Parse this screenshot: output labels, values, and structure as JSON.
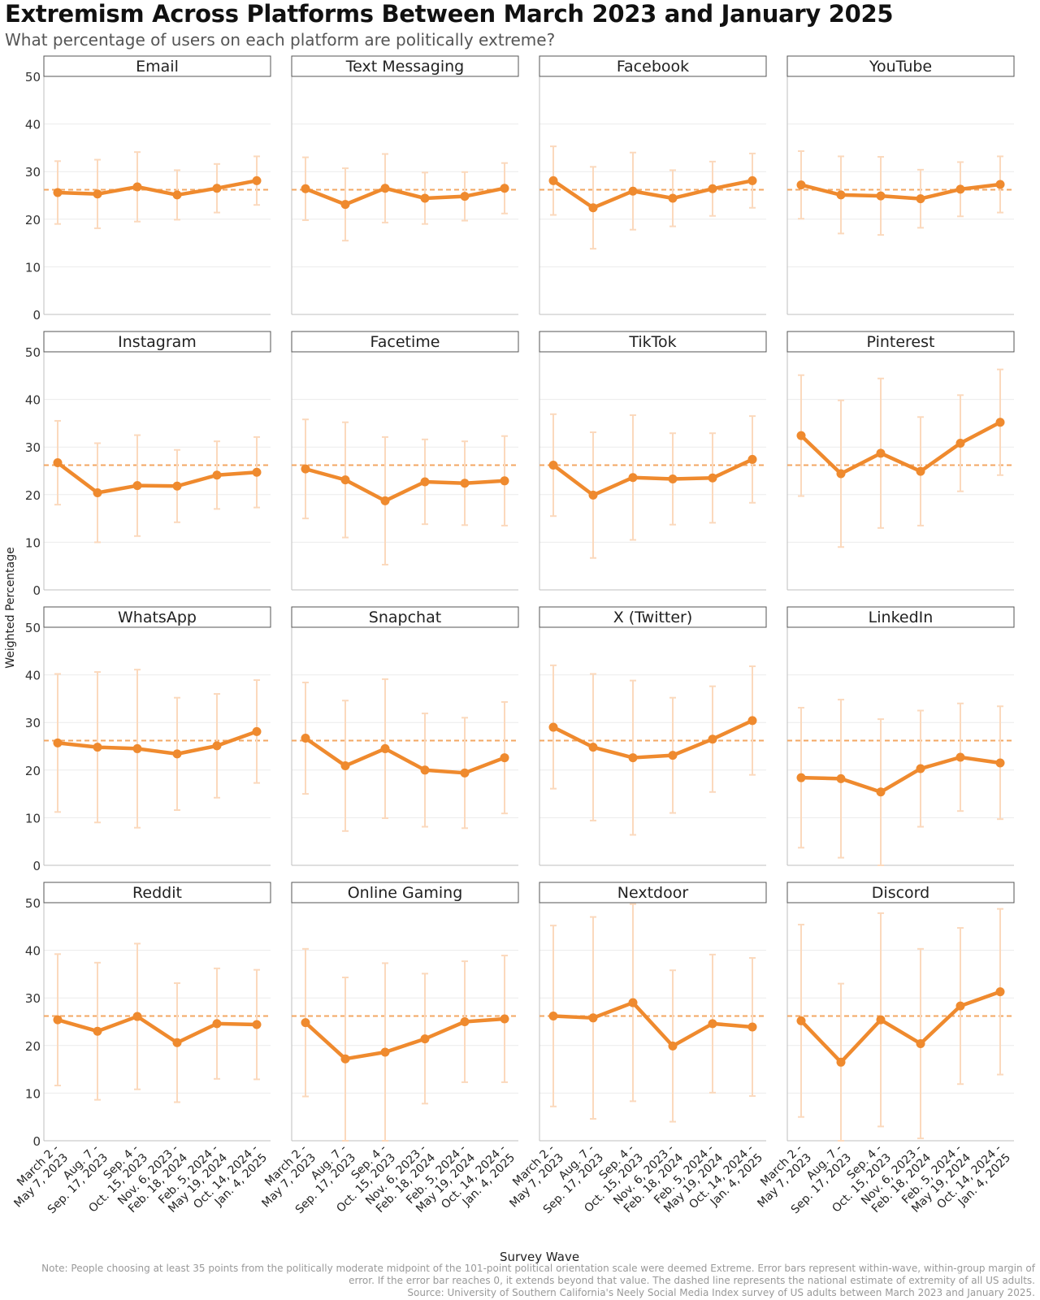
{
  "title": "Extremism Across Platforms Between March 2023 and January 2025",
  "subtitle": "What percentage of users on each platform are politically extreme?",
  "note": {
    "line1": "Note: People choosing at least 35 points from the politically moderate midpoint of the 101-point political orientation scale were deemed Extreme. Error bars represent within-wave, within-group margin of",
    "line2": "error. If the error bar reaches 0, it extends beyond that value. The dashed line represents the national estimate of extremity of all US adults.",
    "line3": "Source: University of Southern California's Neely Social Media Index survey of US adults between March 2023 and January 2025."
  },
  "colors": {
    "line": "#ef8a2e",
    "error_bar": "#fbd9bd",
    "reference_line": "#f3a763",
    "grid": "#ececec",
    "axis_text": "#333333"
  },
  "chart_data": {
    "type": "line",
    "layout": "small-multiples 4x4",
    "xlabel": "Survey Wave",
    "ylabel": "Weighted Percentage",
    "ylim": [
      0,
      50
    ],
    "yticks": [
      0,
      10,
      20,
      30,
      40,
      50
    ],
    "grid": true,
    "reference_value": 26.2,
    "categories": [
      [
        "March 2 -",
        "May 7, 2023"
      ],
      [
        "Aug. 7 -",
        "Sep. 17, 2023"
      ],
      [
        "Sep. 4 -",
        "Oct. 15, 2023"
      ],
      [
        "Nov. 6, 2023 -",
        "Feb. 18, 2024"
      ],
      [
        "Feb. 5, 2024 -",
        "May 19, 2024"
      ],
      [
        "Oct. 14, 2024 -",
        "Jan. 4, 2025"
      ]
    ],
    "panels": [
      {
        "name": "Email",
        "values": [
          25.6,
          25.3,
          26.8,
          25.1,
          26.5,
          28.1
        ],
        "lower": [
          19.0,
          18.1,
          19.5,
          19.9,
          21.4,
          23.0
        ],
        "upper": [
          32.2,
          32.5,
          34.1,
          30.3,
          31.6,
          33.2
        ]
      },
      {
        "name": "Text Messaging",
        "values": [
          26.4,
          23.1,
          26.5,
          24.4,
          24.8,
          26.5
        ],
        "lower": [
          19.8,
          15.5,
          19.3,
          19.0,
          19.7,
          21.2
        ],
        "upper": [
          33.0,
          30.7,
          33.7,
          29.8,
          29.9,
          31.8
        ]
      },
      {
        "name": "Facebook",
        "values": [
          28.1,
          22.4,
          25.9,
          24.4,
          26.4,
          28.1
        ],
        "lower": [
          20.9,
          13.8,
          17.8,
          18.5,
          20.7,
          22.4
        ],
        "upper": [
          35.3,
          31.0,
          34.0,
          30.3,
          32.1,
          33.8
        ]
      },
      {
        "name": "YouTube",
        "values": [
          27.2,
          25.1,
          24.9,
          24.3,
          26.3,
          27.3
        ],
        "lower": [
          20.1,
          17.0,
          16.7,
          18.2,
          20.6,
          21.4
        ],
        "upper": [
          34.3,
          33.2,
          33.1,
          30.4,
          32.0,
          33.2
        ]
      },
      {
        "name": "Instagram",
        "values": [
          26.7,
          20.4,
          21.9,
          21.8,
          24.1,
          24.7
        ],
        "lower": [
          17.9,
          10.0,
          11.3,
          14.2,
          17.0,
          17.3
        ],
        "upper": [
          35.5,
          30.8,
          32.5,
          29.4,
          31.2,
          32.1
        ]
      },
      {
        "name": "Facetime",
        "values": [
          25.4,
          23.1,
          18.7,
          22.7,
          22.4,
          22.9
        ],
        "lower": [
          15.0,
          11.0,
          5.3,
          13.8,
          13.6,
          13.5
        ],
        "upper": [
          35.8,
          35.2,
          32.1,
          31.6,
          31.2,
          32.3
        ]
      },
      {
        "name": "TikTok",
        "values": [
          26.2,
          19.9,
          23.6,
          23.3,
          23.5,
          27.4
        ],
        "lower": [
          15.5,
          6.7,
          10.5,
          13.7,
          14.1,
          18.3
        ],
        "upper": [
          36.9,
          33.1,
          36.7,
          32.9,
          32.9,
          36.5
        ]
      },
      {
        "name": "Pinterest",
        "values": [
          32.4,
          24.4,
          28.7,
          24.9,
          30.8,
          35.2
        ],
        "lower": [
          19.7,
          9.0,
          13.0,
          13.5,
          20.7,
          24.1
        ],
        "upper": [
          45.1,
          39.8,
          44.4,
          36.3,
          40.9,
          46.3
        ]
      },
      {
        "name": "WhatsApp",
        "values": [
          25.7,
          24.8,
          24.5,
          23.4,
          25.1,
          28.1
        ],
        "lower": [
          11.2,
          9.0,
          7.9,
          11.6,
          14.2,
          17.3
        ],
        "upper": [
          40.2,
          40.6,
          41.1,
          35.2,
          36.0,
          38.9
        ]
      },
      {
        "name": "Snapchat",
        "values": [
          26.7,
          20.9,
          24.5,
          20.0,
          19.4,
          22.6
        ],
        "lower": [
          15.0,
          7.2,
          9.9,
          8.1,
          7.8,
          10.9
        ],
        "upper": [
          38.4,
          34.6,
          39.1,
          31.9,
          31.0,
          34.3
        ]
      },
      {
        "name": "X (Twitter)",
        "values": [
          29.0,
          24.8,
          22.6,
          23.1,
          26.5,
          30.4
        ],
        "lower": [
          16.1,
          9.4,
          6.4,
          11.0,
          15.4,
          19.0
        ],
        "upper": [
          42.0,
          40.2,
          38.8,
          35.2,
          37.6,
          41.8
        ]
      },
      {
        "name": "LinkedIn",
        "values": [
          18.4,
          18.2,
          15.4,
          20.3,
          22.7,
          21.5
        ],
        "lower": [
          3.7,
          1.6,
          0,
          8.1,
          11.4,
          9.7
        ],
        "upper": [
          33.1,
          34.8,
          30.7,
          32.5,
          34.0,
          33.4
        ]
      },
      {
        "name": "Reddit",
        "values": [
          25.4,
          23.0,
          26.1,
          20.6,
          24.6,
          24.4
        ],
        "lower": [
          11.6,
          8.6,
          10.8,
          8.1,
          13.0,
          12.9
        ],
        "upper": [
          39.2,
          37.4,
          41.4,
          33.1,
          36.2,
          35.9
        ]
      },
      {
        "name": "Online Gaming",
        "values": [
          24.8,
          17.2,
          18.6,
          21.4,
          25.0,
          25.6
        ],
        "lower": [
          9.3,
          0,
          0,
          7.8,
          12.3,
          12.3
        ],
        "upper": [
          40.3,
          34.3,
          37.3,
          35.1,
          37.7,
          38.9
        ]
      },
      {
        "name": "Nextdoor",
        "values": [
          26.2,
          25.8,
          29.0,
          19.9,
          24.6,
          23.9
        ],
        "lower": [
          7.2,
          4.6,
          8.3,
          4.0,
          10.1,
          9.4
        ],
        "upper": [
          45.2,
          47.0,
          49.7,
          35.8,
          39.1,
          38.4
        ]
      },
      {
        "name": "Discord",
        "values": [
          25.2,
          16.5,
          25.4,
          20.4,
          28.3,
          31.3
        ],
        "lower": [
          5.0,
          0,
          3.0,
          0.5,
          11.9,
          13.9
        ],
        "upper": [
          45.4,
          33.0,
          47.8,
          40.3,
          44.7,
          48.7
        ]
      }
    ]
  }
}
